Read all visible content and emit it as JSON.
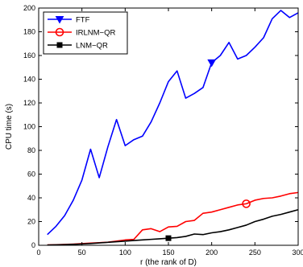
{
  "chart_data": {
    "type": "line",
    "xlabel": "r (the rank of D)",
    "ylabel": "CPU time (s)",
    "xlim": [
      0,
      300
    ],
    "ylim": [
      0,
      200
    ],
    "xticks": [
      0,
      50,
      100,
      150,
      200,
      250,
      300
    ],
    "yticks": [
      0,
      20,
      40,
      60,
      80,
      100,
      120,
      140,
      160,
      180,
      200
    ],
    "grid": false,
    "legend_position": "top-left",
    "series": [
      {
        "name": "FTF",
        "color": "#0000ff",
        "marker": "triangle-down",
        "marker_x": 200,
        "x": [
          10,
          20,
          30,
          40,
          50,
          60,
          70,
          80,
          90,
          100,
          110,
          120,
          130,
          140,
          150,
          160,
          170,
          180,
          190,
          200,
          210,
          220,
          230,
          240,
          250,
          260,
          270,
          280,
          290,
          300
        ],
        "y": [
          9,
          16,
          25,
          38,
          55,
          81,
          57,
          83,
          106,
          84,
          89,
          92,
          104,
          120,
          138,
          147,
          124,
          128,
          133,
          154,
          160,
          171,
          157,
          160,
          167,
          175,
          191,
          198,
          192,
          196
        ]
      },
      {
        "name": "IRLNM−QR",
        "color": "#ff0000",
        "marker": "circle",
        "marker_x": 240,
        "x": [
          10,
          20,
          30,
          40,
          50,
          60,
          70,
          80,
          90,
          100,
          110,
          120,
          130,
          140,
          150,
          160,
          170,
          180,
          190,
          200,
          210,
          220,
          230,
          240,
          250,
          260,
          270,
          280,
          290,
          300
        ],
        "y": [
          0.3,
          0.5,
          0.7,
          1.0,
          1.4,
          1.8,
          2.2,
          2.6,
          3.5,
          4.5,
          5.0,
          13,
          14,
          11.5,
          15.5,
          16,
          20,
          21,
          27,
          28,
          30,
          32,
          34,
          35,
          38,
          39.5,
          40,
          41.5,
          43.5,
          44.5
        ]
      },
      {
        "name": "LNM−QR",
        "color": "#000000",
        "marker": "square",
        "marker_x": 150,
        "x": [
          10,
          20,
          30,
          40,
          50,
          60,
          70,
          80,
          90,
          100,
          110,
          120,
          130,
          140,
          150,
          160,
          170,
          180,
          190,
          200,
          210,
          220,
          230,
          240,
          250,
          260,
          270,
          280,
          290,
          300
        ],
        "y": [
          0.2,
          0.4,
          0.6,
          0.8,
          1.1,
          1.5,
          2.0,
          2.5,
          3.0,
          3.5,
          4.0,
          4.5,
          5.0,
          5.5,
          6.0,
          6.5,
          7.5,
          9.5,
          9.0,
          10.5,
          11.5,
          13,
          15,
          17,
          20,
          22,
          24.5,
          26,
          28,
          30
        ]
      }
    ]
  }
}
